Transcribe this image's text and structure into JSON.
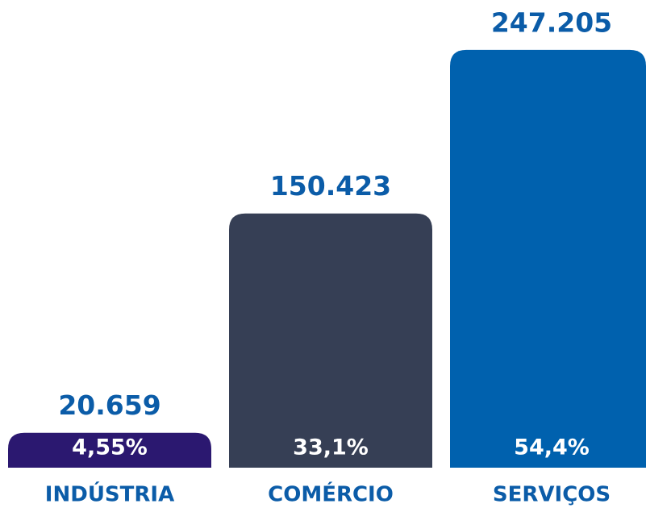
{
  "chart_data": {
    "type": "bar",
    "categories": [
      "INDÚSTRIA",
      "COMÉRCIO",
      "SERVIÇOS"
    ],
    "values": [
      20659,
      150423,
      247205
    ],
    "value_labels": [
      "20.659",
      "150.423",
      "247.205"
    ],
    "percentages": [
      4.55,
      33.1,
      54.4
    ],
    "percentage_labels": [
      "4,55%",
      "33,1%",
      "54,4%"
    ],
    "colors": [
      "#2b1870",
      "#363f55",
      "#0061ae"
    ],
    "ylim": [
      0,
      250000
    ]
  }
}
